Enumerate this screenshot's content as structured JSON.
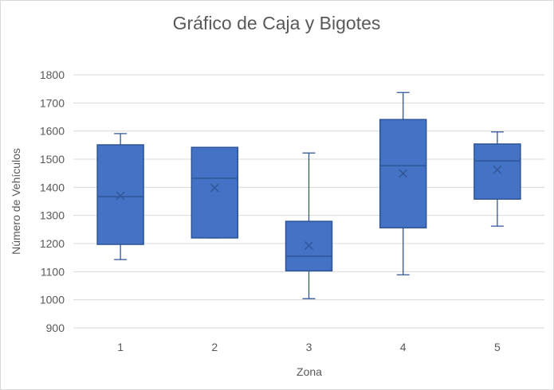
{
  "chart_data": {
    "type": "boxplot",
    "title": "Gráfico de Caja y Bigotes",
    "xlabel": "Zona",
    "ylabel": "Número de Vehículos",
    "ylim": [
      900,
      1800
    ],
    "yticks": [
      900,
      1000,
      1100,
      1200,
      1300,
      1400,
      1500,
      1600,
      1700,
      1800
    ],
    "grid": true,
    "categories": [
      "1",
      "2",
      "3",
      "4",
      "5"
    ],
    "boxes": [
      {
        "category": "1",
        "min": 1143,
        "q1": 1197,
        "median": 1367,
        "q3": 1551,
        "max": 1591,
        "mean": 1370
      },
      {
        "category": "2",
        "min": 1220,
        "q1": 1220,
        "median": 1432,
        "q3": 1542,
        "max": 1542,
        "mean": 1398
      },
      {
        "category": "3",
        "min": 1004,
        "q1": 1103,
        "median": 1155,
        "q3": 1279,
        "max": 1522,
        "mean": 1193
      },
      {
        "category": "4",
        "min": 1089,
        "q1": 1256,
        "median": 1477,
        "q3": 1641,
        "max": 1737,
        "mean": 1449
      },
      {
        "category": "5",
        "min": 1262,
        "q1": 1358,
        "median": 1494,
        "q3": 1554,
        "max": 1597,
        "mean": 1462
      }
    ],
    "colors": {
      "box_fill": "#4472c4",
      "box_stroke": "#2f5597",
      "grid": "#d9d9d9",
      "text": "#595959"
    }
  }
}
